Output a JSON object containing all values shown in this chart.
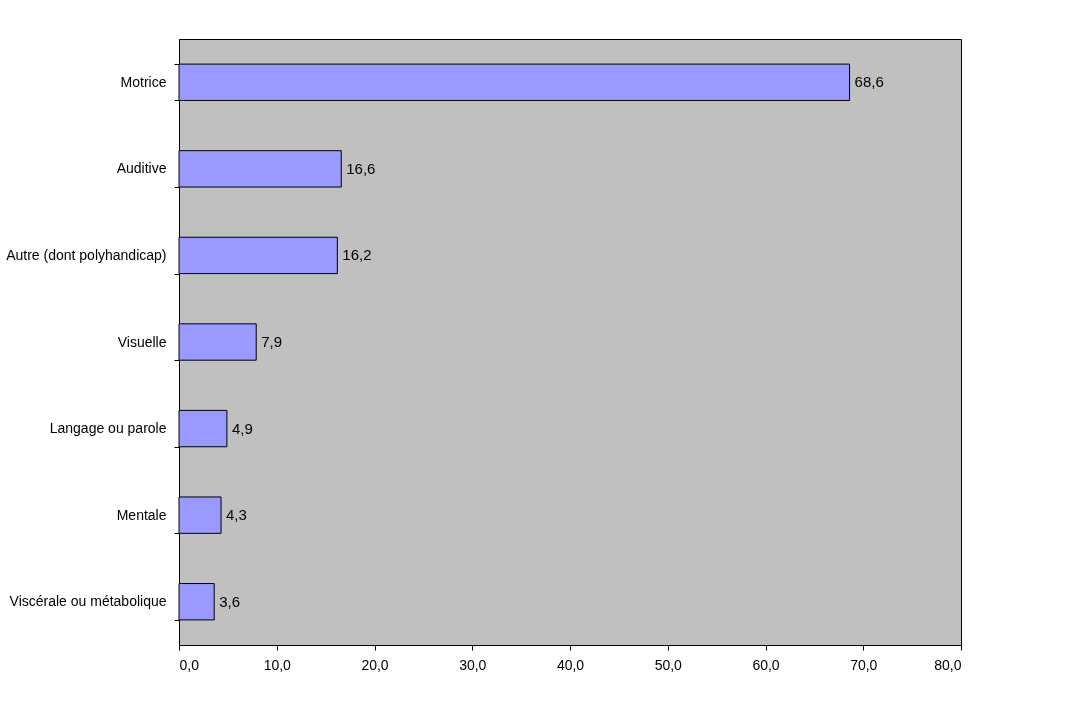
{
  "chart_data": {
    "type": "bar",
    "orientation": "horizontal",
    "categories": [
      "Motrice",
      "Auditive",
      "Autre (dont polyhandicap)",
      "Visuelle",
      "Langage ou parole",
      "Mentale",
      "Viscérale ou métabolique"
    ],
    "values": [
      68.6,
      16.6,
      16.2,
      7.9,
      4.9,
      4.3,
      3.6
    ],
    "value_labels": [
      "68,6",
      "16,6",
      "16,2",
      "7,9",
      "4,9",
      "4,3",
      "3,6"
    ],
    "color": "#9999ff",
    "xlim": [
      0,
      80
    ],
    "xticks": [
      {
        "value": 0,
        "label": "0,0"
      },
      {
        "value": 10,
        "label": "10,0"
      },
      {
        "value": 20,
        "label": "20,0"
      },
      {
        "value": 30,
        "label": "30,0"
      },
      {
        "value": 40,
        "label": "40,0"
      },
      {
        "value": 50,
        "label": "50,0"
      },
      {
        "value": 60,
        "label": "60,0"
      },
      {
        "value": 70,
        "label": "70,0"
      },
      {
        "value": 80,
        "label": "80,0"
      }
    ]
  }
}
